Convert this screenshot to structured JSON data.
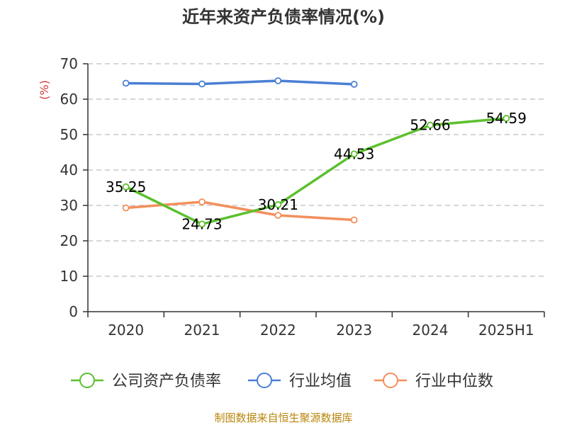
{
  "chart_data": {
    "type": "line",
    "title": "近年来资产负债率情况(%)",
    "ylabel": "(%)",
    "xlabel": "",
    "categories": [
      "2020",
      "2021",
      "2022",
      "2023",
      "2024",
      "2025H1"
    ],
    "ylim": [
      0,
      70
    ],
    "yticks": [
      0,
      10,
      20,
      30,
      40,
      50,
      60,
      70
    ],
    "grid": true,
    "legend_position": "bottom",
    "series": [
      {
        "name": "公司资产负债率",
        "color": "#5cc02e",
        "values": [
          35.25,
          24.73,
          30.21,
          44.53,
          52.66,
          54.59
        ],
        "labels": [
          "35.25",
          "24.73",
          "30.21",
          "44.53",
          "52.66",
          "54.59"
        ]
      },
      {
        "name": "行业均值",
        "color": "#4a7fd4",
        "values": [
          64.5,
          64.3,
          65.2,
          64.2,
          null,
          null
        ]
      },
      {
        "name": "行业中位数",
        "color": "#f28f5c",
        "values": [
          29.3,
          31.0,
          27.2,
          25.9,
          null,
          null
        ]
      }
    ]
  },
  "footer": {
    "source": "制图数据来自恒生聚源数据库"
  }
}
